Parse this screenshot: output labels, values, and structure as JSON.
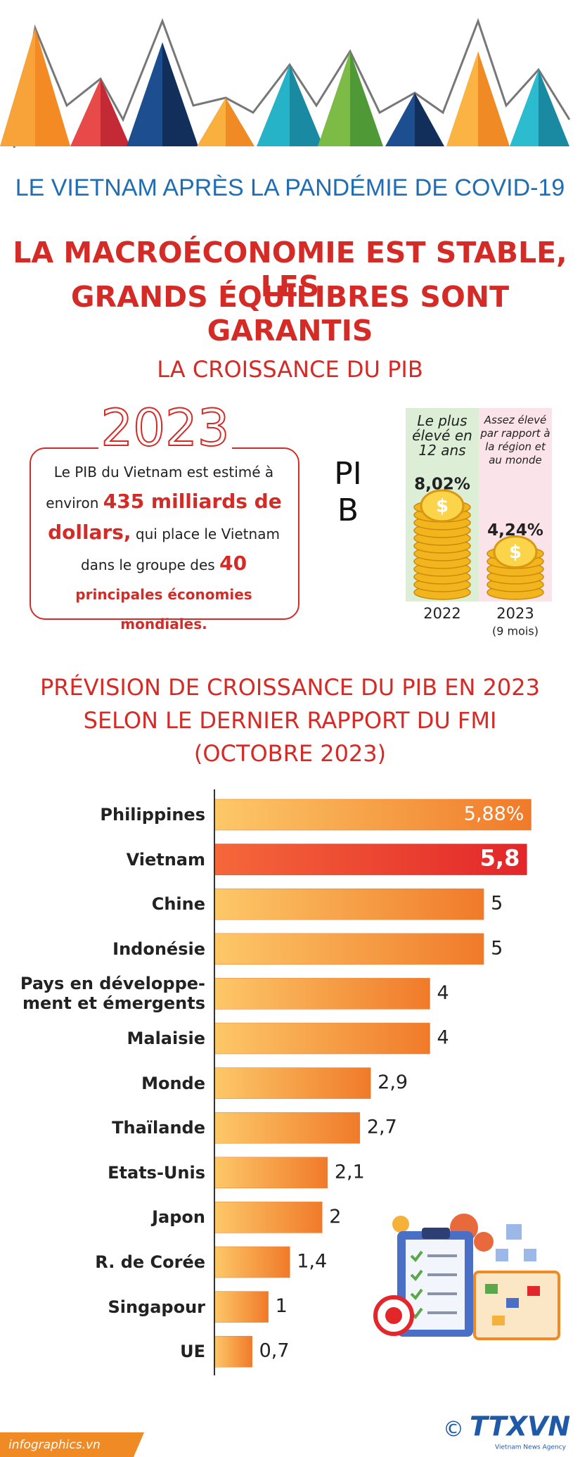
{
  "header": {
    "subtitle": "LE VIETNAM APRÈS LA PANDÉMIE DE COVID-19",
    "title_lines": [
      "LA MACROÉCONOMIE EST STABLE, LES",
      "GRANDS ÉQUILIBRES SONT GARANTIS"
    ]
  },
  "pib_section": {
    "heading": "LA CROISSANCE DU PIB",
    "year": "2023",
    "text": [
      "Le PIB du Vietnam est estimé à environ",
      "435 milliards de dollars,",
      "qui place le Vietnam dans le groupe des",
      "40",
      "principales économies mondiales."
    ]
  },
  "chart_data": [
    {
      "type": "coins",
      "axis_label": "PIB",
      "categories": [
        "2022",
        "2023"
      ],
      "period_note": "(9 mois)",
      "annotations": [
        "Le plus élevé en 12 ans",
        "Assez élevé par rapport à la région et au monde"
      ],
      "values": [
        8.02,
        4.24
      ],
      "value_labels": [
        "8,02%",
        "4,24%"
      ],
      "colors": [
        "#dcefd6",
        "#fbe3ea"
      ],
      "ylim": [
        0,
        9
      ]
    },
    {
      "type": "hbar",
      "title_lines": [
        "PRÉVISION DE CROISSANCE DU PIB EN 2023",
        "SELON LE DERNIER RAPPORT DU FMI",
        "(OCTOBRE 2023)"
      ],
      "categories": [
        "Philippines",
        "Vietnam",
        "Chine",
        "Indonésie",
        "Pays en développe-\nment et émergents",
        "Malaisie",
        "Monde",
        "Thaïlande",
        "Etats-Unis",
        "Japon",
        "R. de Corée",
        "Singapour",
        "UE"
      ],
      "values": [
        5.88,
        5.8,
        5,
        5,
        4,
        4,
        2.9,
        2.7,
        2.1,
        2,
        1.4,
        1,
        0.7
      ],
      "value_labels": [
        "5,88%",
        "5,8",
        "5",
        "5",
        "4",
        "4",
        "2,9",
        "2,7",
        "2,1",
        "2",
        "1,4",
        "1",
        "0,7"
      ],
      "color": "#f07a2a",
      "highlight": "Vietnam",
      "highlight_color": "#e3262a",
      "xlim": [
        0,
        6.2
      ]
    }
  ],
  "footer": {
    "source": "infographics.vn",
    "copyright": "©",
    "agency": "TTXVN",
    "agency_sub": "Vietnam News Agency"
  }
}
